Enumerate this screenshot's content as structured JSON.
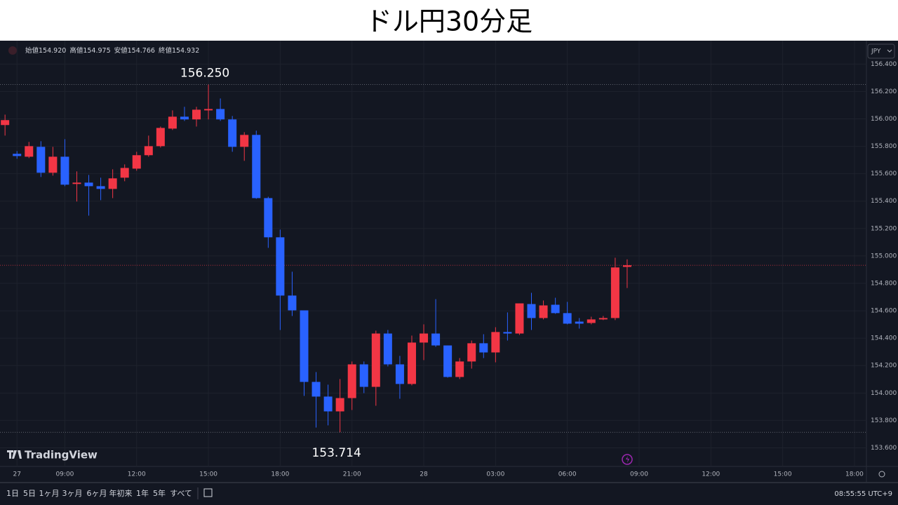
{
  "title": "ドル円30分足",
  "ohlc_legend": [
    {
      "label": "始値",
      "value": "154.920"
    },
    {
      "label": "高値",
      "value": "154.975"
    },
    {
      "label": "安値",
      "value": "154.766"
    },
    {
      "label": "終値",
      "value": "154.932"
    }
  ],
  "currency": "JPY",
  "brand": "TradingView",
  "ranges": [
    "1日",
    "5日",
    "1ヶ月",
    "3ヶ月",
    "6ヶ月",
    "年初来",
    "1年",
    "5年",
    "すべて"
  ],
  "clock": "08:55:55 UTC+9",
  "chart_data": {
    "type": "candlestick",
    "up_color": "#f23645",
    "down_color": "#2962ff",
    "grid": true,
    "x": [
      6.5,
      7,
      7.5,
      8,
      8.5,
      9,
      9.5,
      10,
      10.5,
      11,
      11.5,
      12,
      12.5,
      13,
      13.5,
      14,
      14.5,
      15,
      15.5,
      16,
      16.5,
      17,
      17.5,
      18,
      18.5,
      19,
      19.5,
      20,
      20.5,
      21,
      21.5,
      22,
      22.5,
      23,
      23.5,
      24,
      24.5,
      25,
      25.5,
      26,
      26.5,
      27,
      27.5,
      28,
      28.5,
      29,
      29.5,
      30,
      30.5,
      31,
      31.5,
      32,
      32.5
    ],
    "open": [
      155.955,
      155.745,
      155.724,
      155.796,
      155.607,
      155.724,
      155.525,
      155.535,
      155.509,
      155.489,
      155.571,
      155.637,
      155.735,
      155.801,
      155.929,
      156.016,
      155.996,
      156.062,
      156.072,
      155.996,
      155.796,
      155.883,
      155.422,
      155.136,
      154.711,
      154.603,
      154.081,
      153.974,
      153.866,
      153.963,
      154.209,
      154.045,
      154.434,
      154.209,
      154.066,
      154.368,
      154.434,
      154.347,
      154.117,
      154.23,
      154.363,
      154.296,
      154.445,
      154.434,
      154.649,
      154.547,
      154.644,
      154.583,
      154.521,
      154.511,
      154.537,
      154.547,
      154.92
    ],
    "high": [
      156.031,
      155.765,
      155.832,
      155.837,
      155.796,
      155.852,
      155.617,
      155.591,
      155.571,
      155.632,
      155.668,
      155.76,
      155.878,
      155.944,
      156.062,
      156.088,
      156.088,
      156.25,
      156.149,
      156.021,
      155.903,
      155.914,
      155.432,
      155.192,
      154.885,
      154.603,
      154.153,
      154.061,
      154.102,
      154.23,
      154.23,
      154.455,
      154.46,
      154.271,
      154.419,
      154.501,
      154.685,
      154.347,
      154.255,
      154.383,
      154.429,
      154.48,
      154.588,
      154.654,
      154.731,
      154.675,
      154.695,
      154.665,
      154.547,
      154.557,
      154.562,
      154.987,
      154.975
    ],
    "low": [
      155.878,
      155.709,
      155.714,
      155.576,
      155.586,
      155.509,
      155.397,
      155.294,
      155.407,
      155.422,
      155.545,
      155.622,
      155.724,
      155.791,
      155.919,
      155.985,
      155.944,
      155.996,
      155.985,
      155.76,
      155.694,
      155.417,
      155.059,
      154.46,
      154.562,
      153.979,
      153.748,
      153.764,
      153.714,
      153.876,
      153.999,
      153.907,
      154.194,
      153.958,
      154.056,
      154.24,
      154.337,
      154.112,
      154.102,
      154.178,
      154.255,
      154.224,
      154.383,
      154.424,
      154.46,
      154.537,
      154.578,
      154.501,
      154.47,
      154.501,
      154.532,
      154.532,
      154.766
    ],
    "close": [
      155.991,
      155.729,
      155.801,
      155.607,
      155.724,
      155.52,
      155.535,
      155.509,
      155.489,
      155.566,
      155.642,
      155.735,
      155.801,
      155.934,
      156.016,
      155.996,
      156.067,
      156.072,
      155.996,
      155.796,
      155.883,
      155.422,
      155.136,
      154.711,
      154.603,
      154.081,
      153.974,
      153.866,
      153.963,
      154.209,
      154.045,
      154.434,
      154.209,
      154.066,
      154.368,
      154.434,
      154.347,
      154.117,
      154.23,
      154.363,
      154.296,
      154.445,
      154.434,
      154.654,
      154.547,
      154.639,
      154.583,
      154.506,
      154.506,
      154.537,
      154.547,
      154.916,
      154.932
    ],
    "xlim": [
      6.29,
      42.5
    ],
    "xticks": [
      {
        "value": 7,
        "label": "27"
      },
      {
        "value": 9,
        "label": "09:00"
      },
      {
        "value": 12,
        "label": "12:00"
      },
      {
        "value": 15,
        "label": "15:00"
      },
      {
        "value": 18,
        "label": "18:00"
      },
      {
        "value": 21,
        "label": "21:00"
      },
      {
        "value": 24,
        "label": "28"
      },
      {
        "value": 27,
        "label": "03:00"
      },
      {
        "value": 30,
        "label": "06:00"
      },
      {
        "value": 33,
        "label": "09:00"
      },
      {
        "value": 36,
        "label": "12:00"
      },
      {
        "value": 39,
        "label": "15:00"
      },
      {
        "value": 42,
        "label": "18:00"
      }
    ],
    "ylim": [
      153.49,
      156.55
    ],
    "yticks": [
      {
        "value": 153.6,
        "label": "153.600"
      },
      {
        "value": 153.8,
        "label": "153.800"
      },
      {
        "value": 154.0,
        "label": "154.000"
      },
      {
        "value": 154.2,
        "label": "154.200"
      },
      {
        "value": 154.4,
        "label": "154.400"
      },
      {
        "value": 154.6,
        "label": "154.600"
      },
      {
        "value": 154.8,
        "label": "154.800"
      },
      {
        "value": 155.0,
        "label": "155.000"
      },
      {
        "value": 155.2,
        "label": "155.200"
      },
      {
        "value": 155.4,
        "label": "155.400"
      },
      {
        "value": 155.6,
        "label": "155.600"
      },
      {
        "value": 155.8,
        "label": "155.800"
      },
      {
        "value": 156.0,
        "label": "156.000"
      },
      {
        "value": 156.2,
        "label": "156.200"
      },
      {
        "value": 156.4,
        "label": "156.400"
      }
    ],
    "high_label": {
      "value": 156.25,
      "label": "156.250"
    },
    "low_label": {
      "value": 153.714,
      "label": "153.714"
    }
  }
}
